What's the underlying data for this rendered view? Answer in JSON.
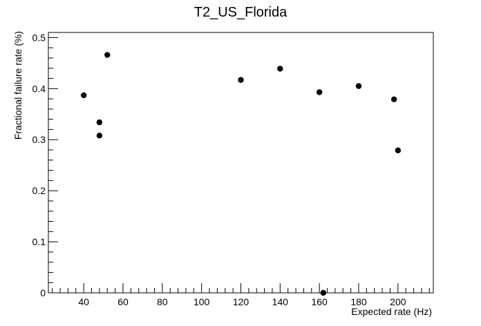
{
  "chart_data": {
    "type": "scatter",
    "title": "T2_US_Florida",
    "xlabel": "Expected rate (Hz)",
    "ylabel": "Fractional failure rate (%)",
    "xlim": [
      22,
      218
    ],
    "ylim": [
      0,
      0.51
    ],
    "xticks": [
      40,
      60,
      80,
      100,
      120,
      140,
      160,
      180,
      200
    ],
    "yticks": [
      0,
      0.1,
      0.2,
      0.3,
      0.4,
      0.5
    ],
    "grid": false,
    "series": [
      {
        "x": [
          40,
          48,
          48,
          52,
          120,
          140,
          160,
          162,
          180,
          198,
          200
        ],
        "y": [
          0.387,
          0.334,
          0.308,
          0.466,
          0.417,
          0.439,
          0.393,
          0.0,
          0.405,
          0.379,
          0.279
        ]
      }
    ]
  }
}
